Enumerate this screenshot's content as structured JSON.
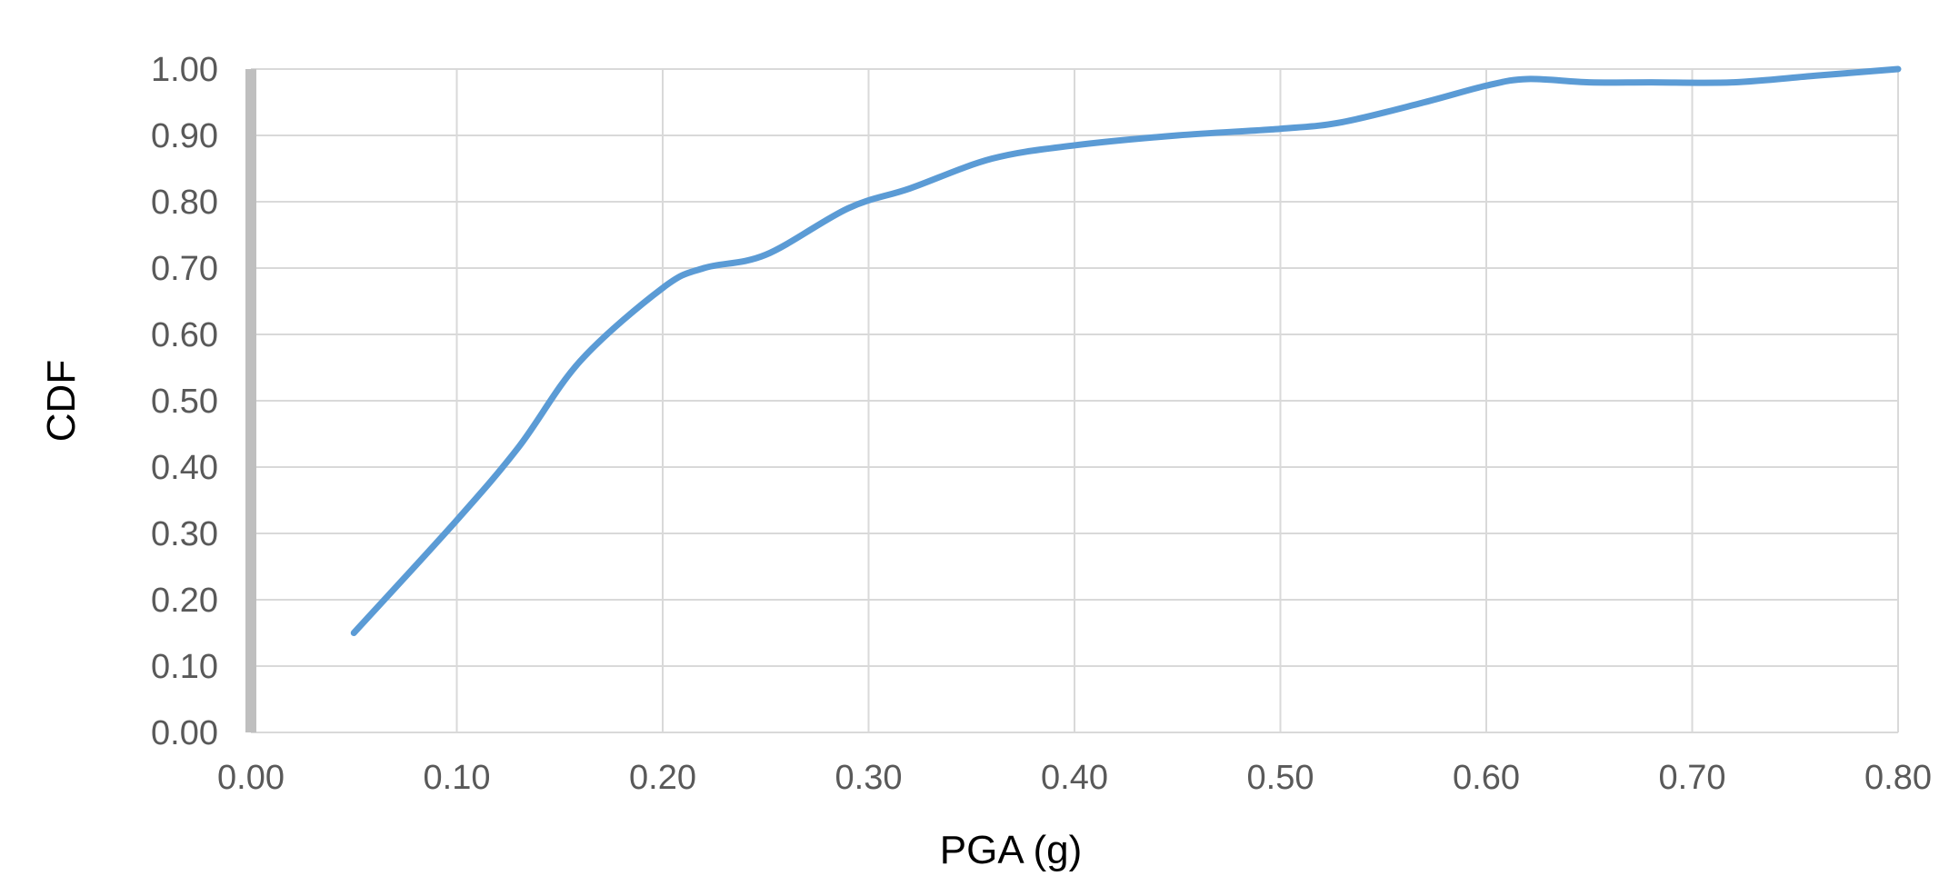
{
  "chart_data": {
    "type": "line",
    "title": "",
    "xlabel": "PGA (g)",
    "ylabel": "CDF",
    "xlim": [
      0,
      0.8
    ],
    "ylim": [
      0,
      1
    ],
    "x_ticks": [
      "0.00",
      "0.10",
      "0.20",
      "0.30",
      "0.40",
      "0.50",
      "0.60",
      "0.70",
      "0.80"
    ],
    "y_ticks": [
      "0.00",
      "0.10",
      "0.20",
      "0.30",
      "0.40",
      "0.50",
      "0.60",
      "0.70",
      "0.80",
      "0.90",
      "1.00"
    ],
    "grid": true,
    "legend": "none",
    "series": [
      {
        "color": "#5b9bd5",
        "points": [
          [
            0.05,
            0.15
          ],
          [
            0.1,
            0.32
          ],
          [
            0.13,
            0.43
          ],
          [
            0.16,
            0.56
          ],
          [
            0.2,
            0.67
          ],
          [
            0.22,
            0.7
          ],
          [
            0.25,
            0.72
          ],
          [
            0.29,
            0.79
          ],
          [
            0.32,
            0.82
          ],
          [
            0.36,
            0.865
          ],
          [
            0.4,
            0.885
          ],
          [
            0.45,
            0.9
          ],
          [
            0.5,
            0.91
          ],
          [
            0.53,
            0.92
          ],
          [
            0.57,
            0.95
          ],
          [
            0.6,
            0.975
          ],
          [
            0.62,
            0.985
          ],
          [
            0.65,
            0.98
          ],
          [
            0.68,
            0.98
          ],
          [
            0.72,
            0.98
          ],
          [
            0.76,
            0.99
          ],
          [
            0.8,
            1.0
          ]
        ]
      }
    ]
  }
}
